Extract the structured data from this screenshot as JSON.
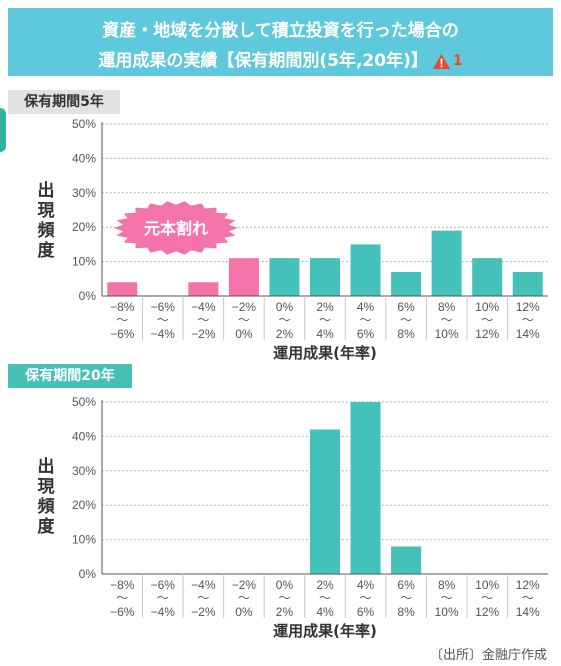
{
  "header": {
    "line1": "資産・地域を分散して積立投資を行った場合の",
    "line2": "運用成果の実績【保有期間別(5年,20年)】",
    "warning_number": "1",
    "warning_icon": "warning-triangle-icon",
    "bg_color": "#5ec8dd"
  },
  "source": "〔出所〕金融庁作成",
  "chart_data": [
    {
      "type": "bar",
      "panel_label": "保有期間5年",
      "callout": "元本割れ",
      "ylabel": "出現頻度",
      "xlabel": "運用成果(年率)",
      "ylim": [
        0,
        50
      ],
      "yticks": [
        "0%",
        "10%",
        "20%",
        "30%",
        "40%",
        "50%"
      ],
      "grid": true,
      "categories": [
        {
          "top": "−8%",
          "bottom": "−6%"
        },
        {
          "top": "−6%",
          "bottom": "−4%"
        },
        {
          "top": "−4%",
          "bottom": "−2%"
        },
        {
          "top": "−2%",
          "bottom": "0%"
        },
        {
          "top": "0%",
          "bottom": "2%"
        },
        {
          "top": "2%",
          "bottom": "4%"
        },
        {
          "top": "4%",
          "bottom": "6%"
        },
        {
          "top": "6%",
          "bottom": "8%"
        },
        {
          "top": "8%",
          "bottom": "10%"
        },
        {
          "top": "10%",
          "bottom": "12%"
        },
        {
          "top": "12%",
          "bottom": "14%"
        }
      ],
      "values": [
        4,
        0,
        4,
        11,
        11,
        11,
        15,
        7,
        19,
        11,
        7
      ],
      "loss_color": "#f473a8",
      "gain_color": "#44c1b9",
      "loss_bar_count": 4
    },
    {
      "type": "bar",
      "panel_label": "保有期間20年",
      "ylabel": "出現頻度",
      "xlabel": "運用成果(年率)",
      "ylim": [
        0,
        50
      ],
      "yticks": [
        "0%",
        "10%",
        "20%",
        "30%",
        "40%",
        "50%"
      ],
      "grid": true,
      "categories": [
        {
          "top": "−8%",
          "bottom": "−6%"
        },
        {
          "top": "−6%",
          "bottom": "−4%"
        },
        {
          "top": "−4%",
          "bottom": "−2%"
        },
        {
          "top": "−2%",
          "bottom": "0%"
        },
        {
          "top": "0%",
          "bottom": "2%"
        },
        {
          "top": "2%",
          "bottom": "4%"
        },
        {
          "top": "4%",
          "bottom": "6%"
        },
        {
          "top": "6%",
          "bottom": "8%"
        },
        {
          "top": "8%",
          "bottom": "10%"
        },
        {
          "top": "10%",
          "bottom": "12%"
        },
        {
          "top": "12%",
          "bottom": "14%"
        }
      ],
      "values": [
        0,
        0,
        0,
        0,
        0,
        42,
        50,
        8,
        0,
        0,
        0
      ],
      "gain_color": "#44c1b9"
    }
  ]
}
